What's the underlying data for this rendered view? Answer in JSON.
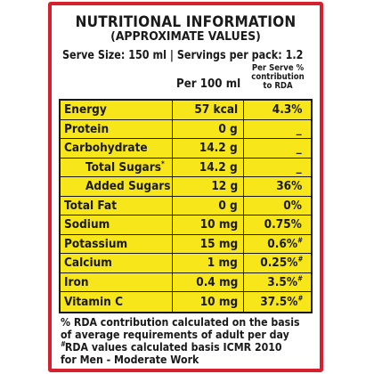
{
  "title": "NUTRITIONAL INFORMATION",
  "subtitle": "(APPROXIMATE VALUES)",
  "serve_info": "Serve Size: 150 ml | Servings per pack: 1.2",
  "columns": {
    "per100": "Per 100 ml",
    "rda_line1": "Per Serve %",
    "rda_line2": "contribution",
    "rda_line3": "to RDA"
  },
  "rows": [
    {
      "name": "Energy",
      "value": "57 kcal",
      "rda": "4.3%",
      "rda_mark": ""
    },
    {
      "name": "Protein",
      "value": "0 g",
      "rda": "_",
      "rda_mark": ""
    },
    {
      "name": "Carbohydrate",
      "value": "14.2 g",
      "rda": "_",
      "rda_mark": ""
    },
    {
      "name": "Total Sugars",
      "name_mark": "*",
      "value": "14.2 g",
      "rda": "_",
      "rda_mark": ""
    },
    {
      "name": "Added Sugars",
      "value": "12 g",
      "rda": "36%",
      "rda_mark": ""
    },
    {
      "name": "Total Fat",
      "value": "0 g",
      "rda": "0%",
      "rda_mark": ""
    },
    {
      "name": "Sodium",
      "value": "10 mg",
      "rda": "0.75%",
      "rda_mark": ""
    },
    {
      "name": "Potassium",
      "value": "15 mg",
      "rda": "0.6%",
      "rda_mark": "#"
    },
    {
      "name": "Calcium",
      "value": "1 mg",
      "rda": "0.25%",
      "rda_mark": "#"
    },
    {
      "name": "Iron",
      "value": "0.4 mg",
      "rda": "3.5%",
      "rda_mark": "#"
    },
    {
      "name": "Vitamin C",
      "value": "10 mg",
      "rda": "37.5%",
      "rda_mark": "#"
    }
  ],
  "footnote": {
    "line1": "% RDA contribution calculated on the basis",
    "line2": "of average requirements of adult per day",
    "line3_mark": "#",
    "line3": "RDA values calculated basis ICMR 2010",
    "line4": "for Men - Moderate Work"
  },
  "colors": {
    "border": "#d4202f",
    "row_fill": "#f7e61a",
    "text": "#1a1a1a"
  }
}
